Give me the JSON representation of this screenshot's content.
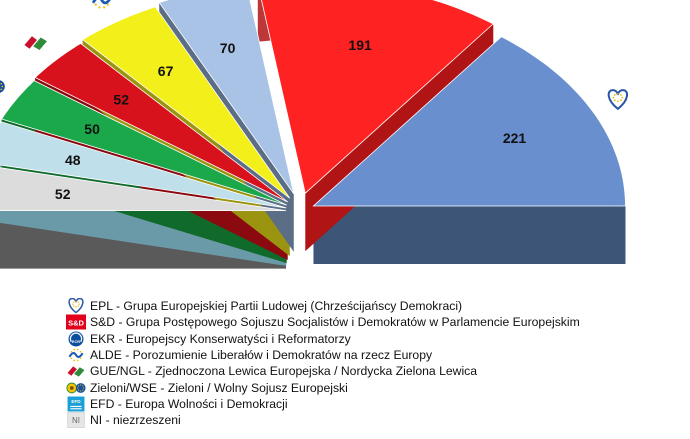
{
  "chart_data": {
    "type": "pie",
    "subtype": "3d-semicircle-exploded",
    "title": "",
    "series": [
      {
        "abbr": "NI",
        "value": 52,
        "color": "#dcdcdc",
        "side": "#5a5a5a",
        "icon": "ni-logo"
      },
      {
        "abbr": "EFD",
        "value": 48,
        "color": "#bfe0ea",
        "side": "#6a9aa8",
        "icon": "efd-logo"
      },
      {
        "abbr": "Zieloni/WSE",
        "value": 50,
        "color": "#1aa84a",
        "side": "#0f6a2c",
        "icon": "greens-logo"
      },
      {
        "abbr": "GUE/NGL",
        "value": 52,
        "color": "#d8121c",
        "side": "#8a0a10",
        "icon": "gue-logo"
      },
      {
        "abbr": "ALDE",
        "value": 67,
        "color": "#f2ef1a",
        "side": "#9a9410",
        "icon": "alde-logo"
      },
      {
        "abbr": "EKR",
        "value": 70,
        "color": "#a9c3e6",
        "side": "#5c6e86",
        "icon": "ekr-logo"
      },
      {
        "abbr": "S&D",
        "value": 191,
        "color": "#ff2222",
        "side": "#b01414",
        "icon": "sd-logo"
      },
      {
        "abbr": "EPL",
        "value": 221,
        "color": "#6a8fcf",
        "side": "#3d5678",
        "icon": "epl-logo"
      }
    ]
  },
  "icon_texts": {
    "sd": "S&D",
    "ekr": "ECR",
    "efd": "EFD",
    "ni": "NI"
  },
  "legend": [
    {
      "icon": "epl-logo",
      "text": "EPL - Grupa  Europejskiej Partii Ludowej  (Chrześcijańscy Demokraci)"
    },
    {
      "icon": "sd-logo",
      "text": "S&D - Grupa  Postępowego  Sojuszu Socjalistów i Demokratów w Parlamencie Europejskim"
    },
    {
      "icon": "ekr-logo",
      "text": "EKR - Europejscy Konserwatyści  i Reformatorzy"
    },
    {
      "icon": "alde-logo",
      "text": "ALDE - Porozumienie  Liberałów  i Demokratów  na rzecz Europy"
    },
    {
      "icon": "gue-logo",
      "text": "GUE/NGL  - Zjednoczona  Lewica Europejska  / Nordycka Zielona  Lewica"
    },
    {
      "icon": "greens-logo",
      "text": "Zieloni/WSE  - Zieloni  / Wolny Sojusz Europejski"
    },
    {
      "icon": "efd-logo",
      "text": "EFD - Europa  Wolności i Demokracji"
    },
    {
      "icon": "ni-logo",
      "text": "NI  - niezrzeszeni"
    }
  ]
}
